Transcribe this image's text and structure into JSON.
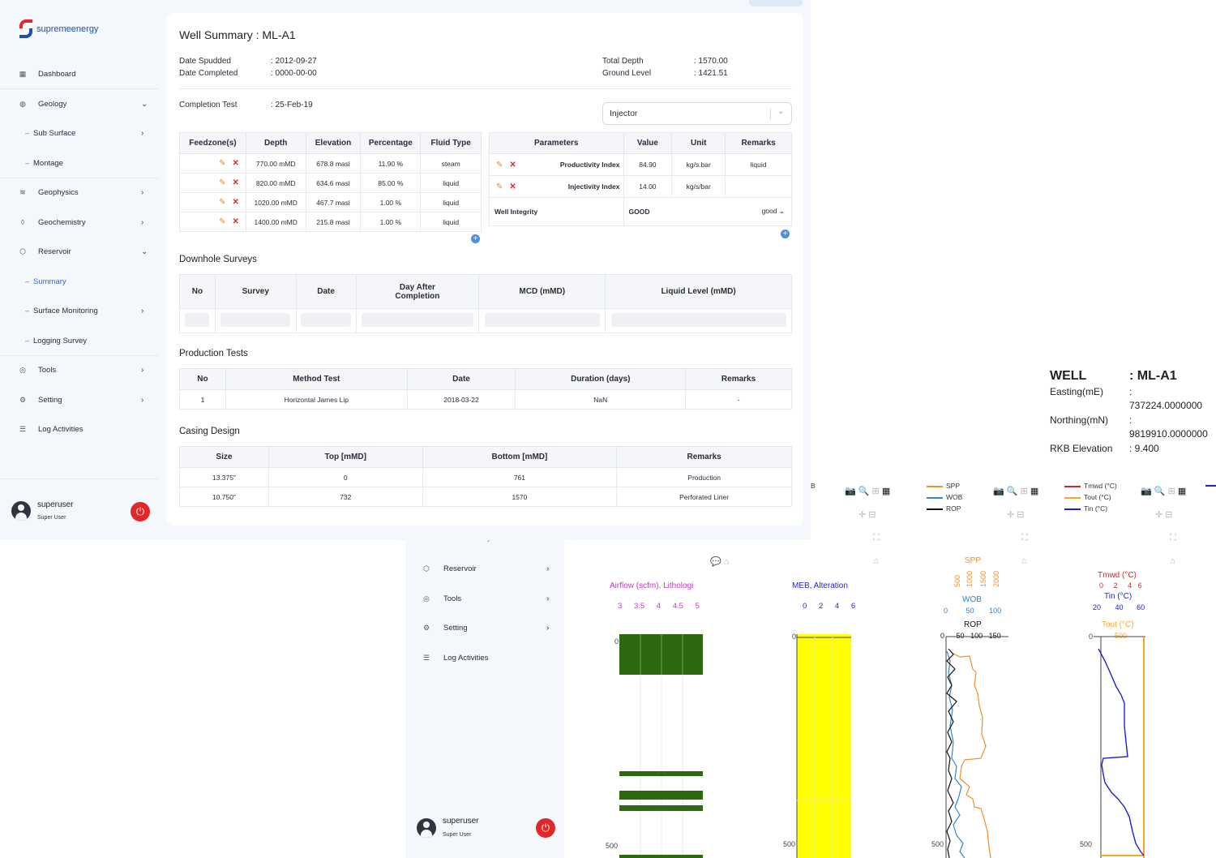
{
  "app": {
    "logo_text": "supremeenergy"
  },
  "sidebar": {
    "items": [
      {
        "label": "Dashboard"
      },
      {
        "label": "Geology"
      },
      {
        "label": "Sub Surface"
      },
      {
        "label": "Montage"
      },
      {
        "label": "Geophysics"
      },
      {
        "label": "Geochemistry"
      },
      {
        "label": "Reservoir"
      },
      {
        "label": "Summary"
      },
      {
        "label": "Surface Monitoring"
      },
      {
        "label": "Logging Survey"
      },
      {
        "label": "Tools"
      },
      {
        "label": "Setting"
      },
      {
        "label": "Log Activities"
      }
    ],
    "user": {
      "name": "superuser",
      "role": "Super User"
    }
  },
  "well_summary": {
    "title": "Well Summary : ML-A1",
    "date_spudded_label": "Date Spudded",
    "date_spudded": ": 2012-09-27",
    "date_completed_label": "Date Completed",
    "date_completed": ": 0000-00-00",
    "total_depth_label": "Total Depth",
    "total_depth": ": 1570.00",
    "ground_level_label": "Ground Level",
    "ground_level": ": 1421.51",
    "completion_test_label": "Completion Test",
    "completion_test": ": 25-Feb-19",
    "well_type": "Injector"
  },
  "feedzones": {
    "headers": [
      "Feedzone(s)",
      "Depth",
      "Elevation",
      "Percentage",
      "Fluid Type"
    ],
    "rows": [
      [
        "770.00 mMD",
        "678.8 masl",
        "11.90 %",
        "steam"
      ],
      [
        "820.00 mMD",
        "634.6 masl",
        "85.00 %",
        "liquid"
      ],
      [
        "1020.00 mMD",
        "467.7 masl",
        "1.00 %",
        "liquid"
      ],
      [
        "1400.00 mMD",
        "215.8 masl",
        "1.00 %",
        "liquid"
      ]
    ]
  },
  "parameters": {
    "headers": [
      "Parameters",
      "Value",
      "Unit",
      "Remarks"
    ],
    "rows": [
      [
        "Productivity Index",
        "84.90",
        "kg/s.bar",
        "liquid"
      ],
      [
        "Injectivity Index",
        "14.00",
        "kg/s/bar",
        ""
      ]
    ],
    "integrity_label": "Well Integrity",
    "integrity_value": "GOOD",
    "integrity_select": "good"
  },
  "downhole": {
    "title": "Downhole Surveys",
    "headers": [
      "No",
      "Survey",
      "Date",
      "Day After Completion",
      "MCD (mMD)",
      "Liquid Level (mMD)"
    ]
  },
  "production": {
    "title": "Production Tests",
    "headers": [
      "No",
      "Method Test",
      "Date",
      "Duration (days)",
      "Remarks"
    ],
    "rows": [
      [
        "1",
        "Horizontal James Lip",
        "2018-03-22",
        "NaN",
        "-"
      ]
    ]
  },
  "casing": {
    "title": "Casing Design",
    "headers": [
      "Size",
      "Top [mMD]",
      "Bottom [mMD]",
      "Remarks"
    ],
    "rows": [
      [
        "13.375\"",
        "0",
        "761",
        "Production"
      ],
      [
        "10.750\"",
        "732",
        "1570",
        "Perforated Liner"
      ]
    ]
  },
  "background_sidebar": {
    "partial_label": "Geochemistry",
    "items": [
      {
        "label": "Reservoir"
      },
      {
        "label": "Tools"
      },
      {
        "label": "Setting"
      },
      {
        "label": "Log Activities"
      }
    ],
    "user": {
      "name": "superuser",
      "role": "Super User"
    }
  },
  "well_info": {
    "well_label": "WELL",
    "well_value": ": ML-A1",
    "easting_label": "Easting(mE)",
    "easting_value": ":",
    "easting_num": "737224.0000000",
    "northing_label": "Northing(mN)",
    "northing_value": ":",
    "northing_num": "9819910.0000000",
    "rkb_label": "RKB Elevation",
    "rkb_value": ": 9.400"
  },
  "plots": {
    "legend_b": "B",
    "airflow_title": "Airflow (scfm),  Lithologi",
    "airflow_ticks": [
      "3",
      "3.5",
      "4",
      "4.5",
      "5"
    ],
    "meb_title": "MEB, Alteration",
    "meb_ticks": [
      "0",
      "2",
      "4",
      "6"
    ],
    "spp_legend": [
      "SPP",
      "WOB",
      "ROP"
    ],
    "spp_title": "SPP",
    "spp_ticks": [
      "500",
      "1000",
      "1500",
      "2000"
    ],
    "wob_title": "WOB",
    "wob_ticks": [
      "0",
      "50",
      "100"
    ],
    "rop_title": "ROP",
    "rop_ticks": [
      "0",
      "50",
      "100",
      "150"
    ],
    "temp_legend": [
      "Tmwd (°C)",
      "Tout (°C)",
      "Tin (°C)"
    ],
    "tmwd_title": "Tmwd (°C)",
    "tmwd_ticks": [
      "0",
      "2",
      "4",
      "6"
    ],
    "tin_title": "Tin (°C)",
    "tin_ticks": [
      "20",
      "40",
      "60"
    ],
    "tout_title": "Tout (°C)",
    "tout_tick": "500",
    "depth_ticks": [
      "0",
      "500"
    ],
    "colors": {
      "spp": "#f28e2b",
      "wob": "#2f86d1",
      "rop": "#111111",
      "tmwd": "#d62728",
      "tout": "#f5a623",
      "tin": "#1f1fd6",
      "lith": "#2b6a0f",
      "alteration": "#ffff00"
    }
  }
}
